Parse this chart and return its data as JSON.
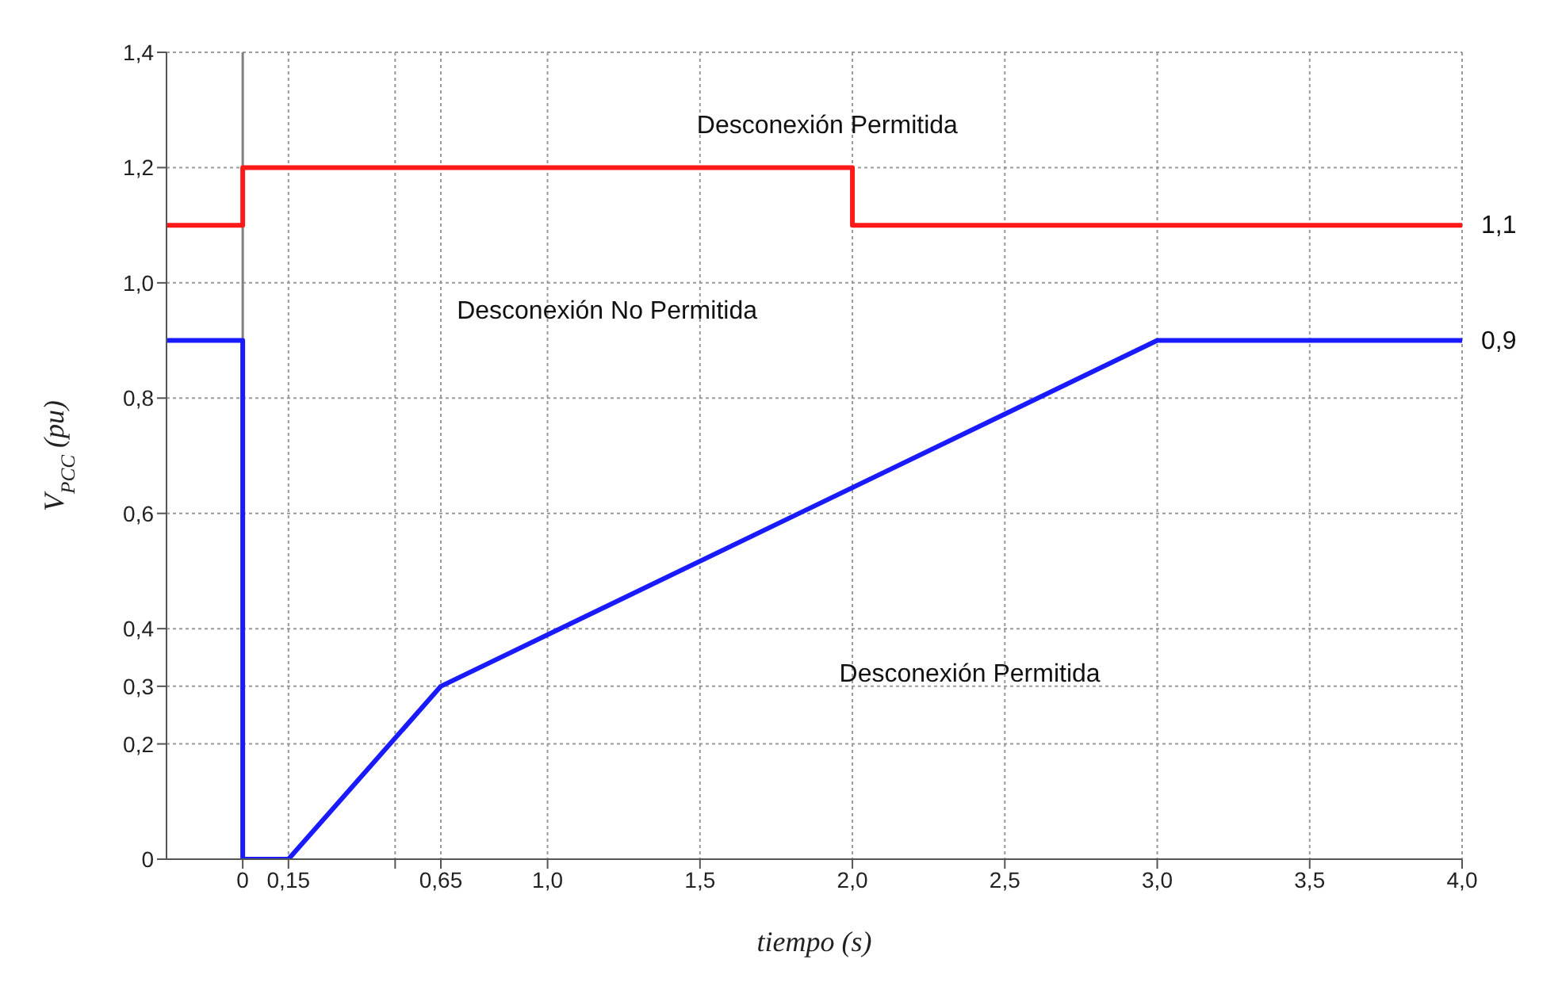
{
  "chart_data": {
    "type": "line",
    "xlabel": "tiempo (s)",
    "ylabel": "V$_{PCC}$ (pu)",
    "xlim": [
      -0.25,
      4.0
    ],
    "xticks": [
      {
        "value": 0,
        "label": "0"
      },
      {
        "value": 0.15,
        "label": "0,15"
      },
      {
        "value": 0.5,
        "label": null
      },
      {
        "value": 0.65,
        "label": "0,65"
      },
      {
        "value": 1.0,
        "label": "1,0"
      },
      {
        "value": 1.5,
        "label": "1,5"
      },
      {
        "value": 2.0,
        "label": "2,0"
      },
      {
        "value": 2.5,
        "label": "2,5"
      },
      {
        "value": 3.0,
        "label": "3,0"
      },
      {
        "value": 3.5,
        "label": "3,5"
      },
      {
        "value": 4.0,
        "label": "4,0"
      }
    ],
    "ylim": [
      0,
      1.4
    ],
    "yticks": [
      {
        "value": 0,
        "label": "0"
      },
      {
        "value": 0.2,
        "label": "0,2"
      },
      {
        "value": 0.3,
        "label": "0,3"
      },
      {
        "value": 0.4,
        "label": "0,4"
      },
      {
        "value": 0.6,
        "label": "0,6"
      },
      {
        "value": 0.8,
        "label": "0,8"
      },
      {
        "value": 1.0,
        "label": "1,0"
      },
      {
        "value": 1.2,
        "label": "1,2"
      },
      {
        "value": 1.4,
        "label": "1,4"
      }
    ],
    "grid": true,
    "marker": "none",
    "line_style": "solid",
    "series": [
      {
        "color": "#ff1a1a",
        "x": [
          -0.25,
          0,
          0,
          2,
          2,
          4
        ],
        "values": [
          1.1,
          1.1,
          1.2,
          1.2,
          1.1,
          1.1
        ]
      },
      {
        "color": "#1a1aff",
        "x": [
          -0.25,
          0,
          0,
          0.15,
          0.65,
          3,
          4
        ],
        "values": [
          0.9,
          0.9,
          0,
          0,
          0.3,
          0.9,
          0.9
        ]
      }
    ],
    "ref_lines": [
      {
        "axis": "x",
        "value": 0,
        "color": "#808080"
      }
    ],
    "annotations": [
      "Desconexión Permitida",
      "Desconexión No Permitida",
      "Desconexión Permitida",
      {
        "text": "1,1",
        "x": 4.0,
        "y": 1.1
      },
      {
        "text": "0,9",
        "x": 4.0,
        "y": 0.9
      }
    ]
  }
}
